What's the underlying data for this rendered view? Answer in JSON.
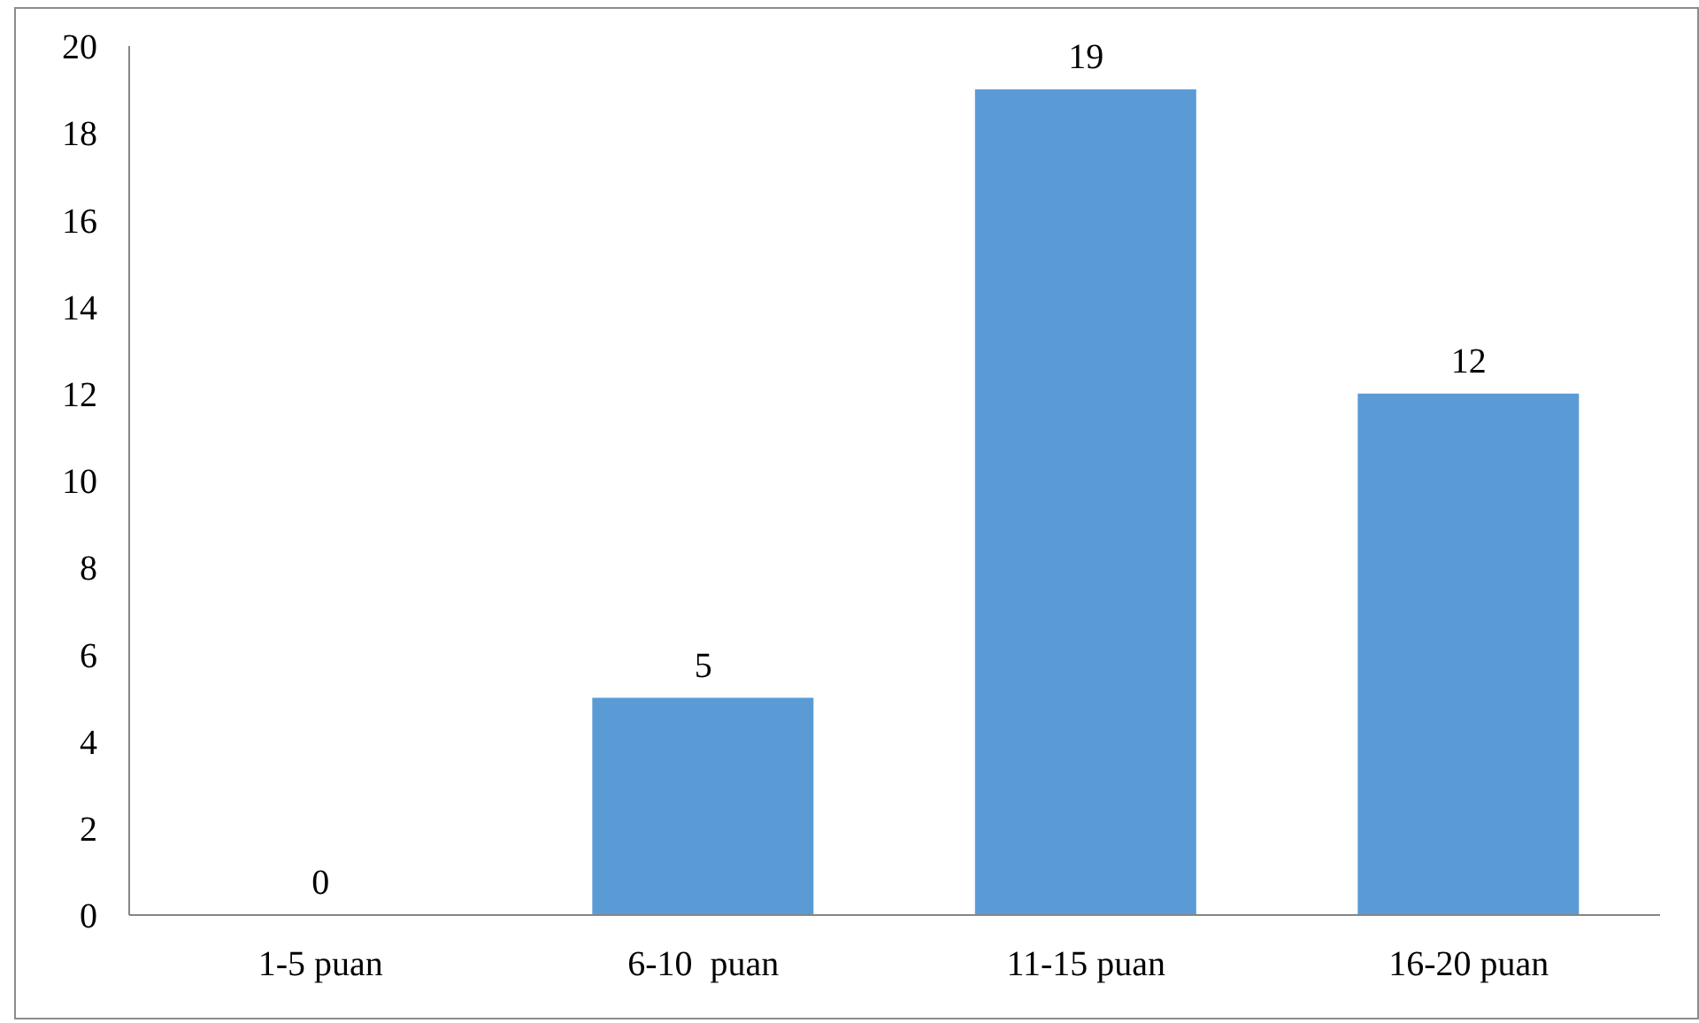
{
  "chart_data": {
    "type": "bar",
    "categories": [
      "1-5 puan",
      "6-10  puan",
      "11-15 puan",
      "16-20 puan"
    ],
    "values": [
      0,
      5,
      19,
      12
    ],
    "color": "#5b9bd5",
    "ylim": [
      0,
      20
    ],
    "yticks": [
      0,
      2,
      4,
      6,
      8,
      10,
      12,
      14,
      16,
      18,
      20
    ],
    "grid": false,
    "data_labels": true
  }
}
